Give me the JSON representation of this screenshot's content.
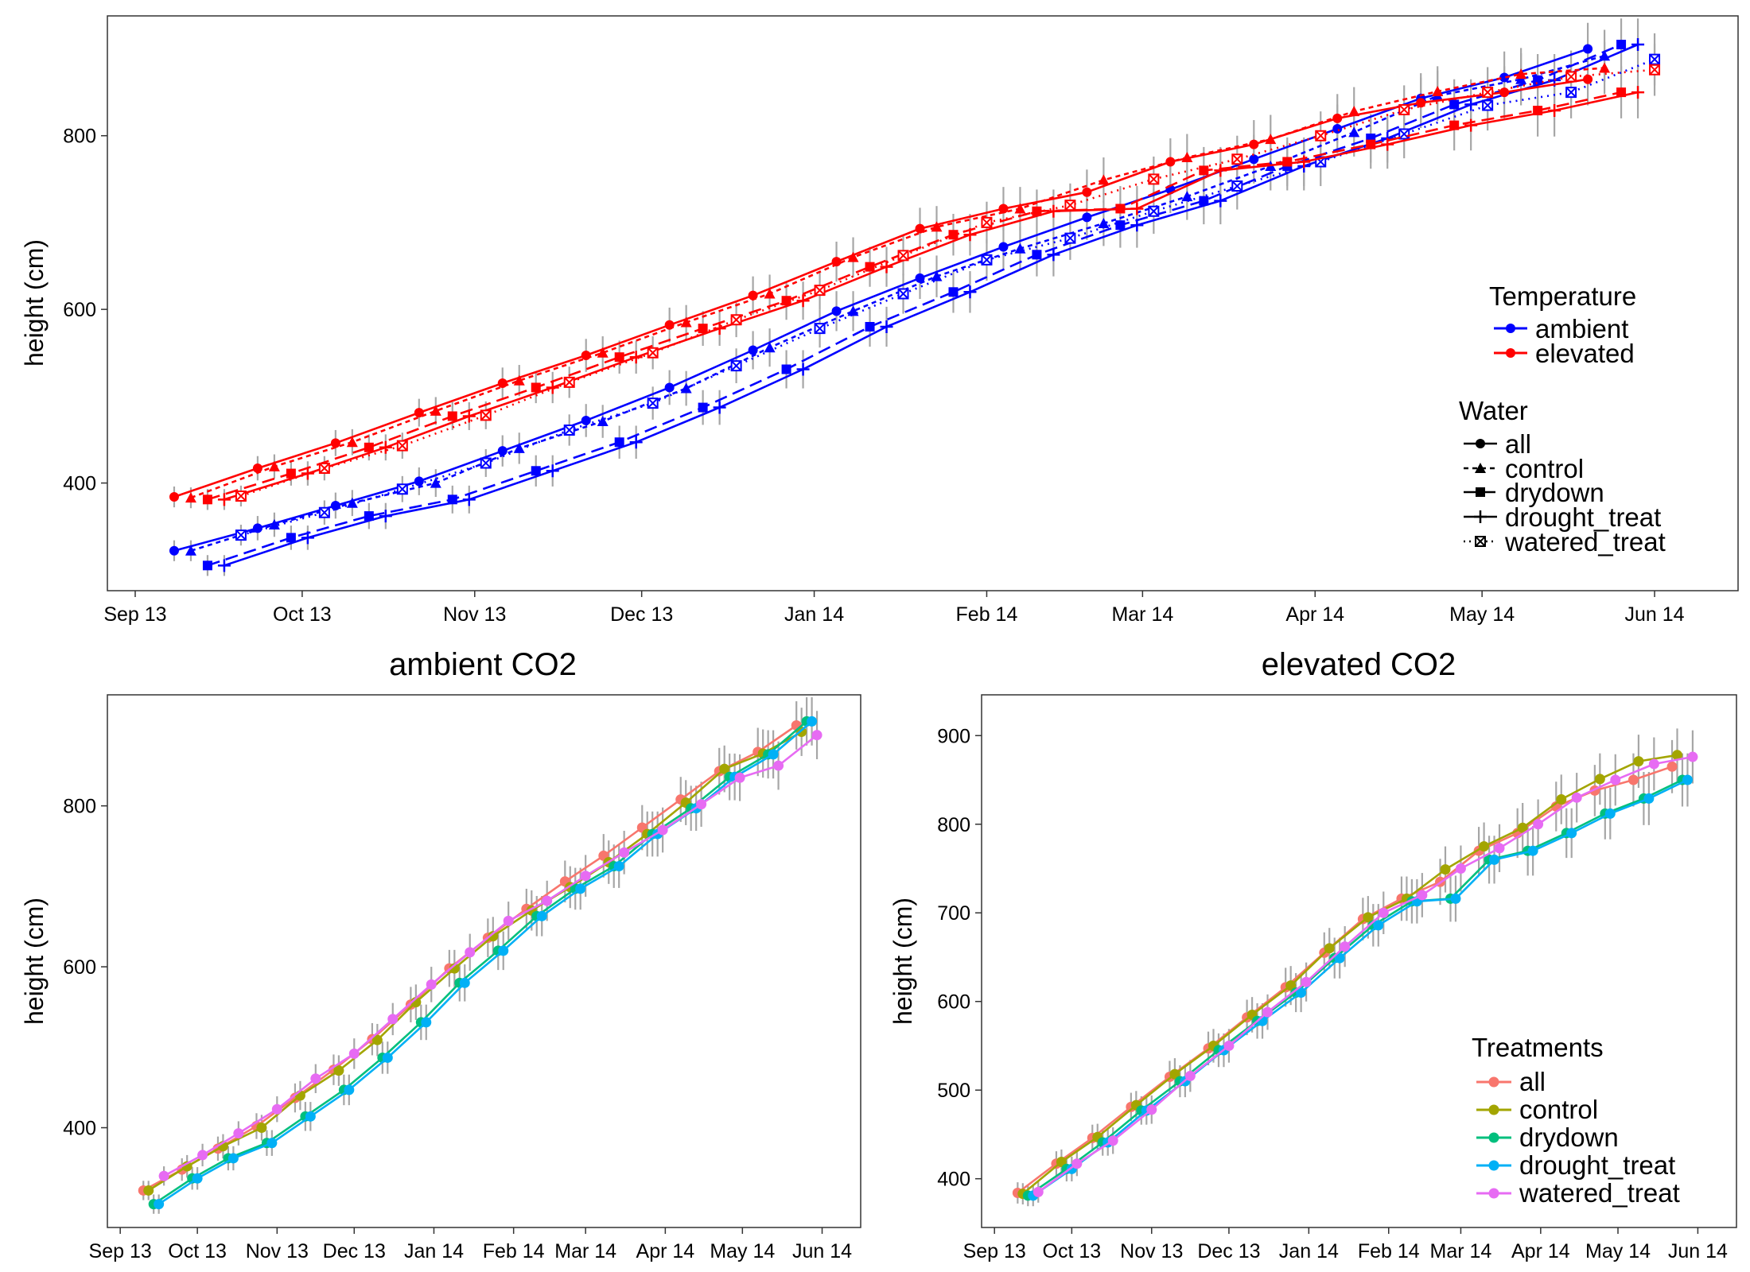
{
  "x_tick_labels": [
    "Sep 13",
    "Oct 13",
    "Nov 13",
    "Dec 13",
    "Jan 14",
    "Feb 14",
    "Mar 14",
    "Apr 14",
    "May 14",
    "Jun 14"
  ],
  "colors": {
    "ambient": "#0000ff",
    "elevated": "#ff0000",
    "errorbar": "#a6a6a6",
    "all": "#f8766d",
    "control": "#a3a500",
    "drydown": "#00bf7d",
    "drought_treat": "#00b0f6",
    "watered_treat": "#e76bf3"
  },
  "legend_top": {
    "temperature_title": "Temperature",
    "ambient": "ambient",
    "elevated": "elevated",
    "water_title": "Water",
    "all": "all",
    "control": "control",
    "drydown": "drydown",
    "drought_treat": "drought_treat",
    "watered_treat": "watered_treat"
  },
  "legend_treat": {
    "title": "Treatments",
    "all": "all",
    "control": "control",
    "drydown": "drydown",
    "drought_treat": "drought_treat",
    "watered_treat": "watered_treat"
  },
  "chart_data": [
    {
      "type": "line",
      "ylabel": "height (cm)",
      "xlabel": "",
      "x_ticks": [
        "Sep 13",
        "Oct 13",
        "Nov 13",
        "Dec 13",
        "Jan 14",
        "Feb 14",
        "Mar 14",
        "Apr 14",
        "May 14",
        "Jun 14"
      ],
      "y_ticks": [
        400,
        600,
        800
      ],
      "ylim": [
        276,
        938
      ],
      "x_axis": "date",
      "xlim": [
        "2013-08-27",
        "2014-06-16"
      ],
      "grid": false,
      "legend": [
        "Temperature: top-right",
        "Water: right"
      ],
      "x": [
        "2013-09-14",
        "2013-09-29",
        "2013-10-13",
        "2013-10-28",
        "2013-11-12",
        "2013-11-27",
        "2013-12-12",
        "2013-12-27",
        "2014-01-11",
        "2014-01-26",
        "2014-02-10",
        "2014-02-25",
        "2014-03-12",
        "2014-03-27",
        "2014-04-11",
        "2014-04-26",
        "2014-05-11",
        "2014-05-26"
      ],
      "series": [
        {
          "name": "ambient / all",
          "values": [
            322,
            348,
            374,
            402,
            437,
            472,
            510,
            553,
            598,
            636,
            672,
            706,
            738,
            773,
            808,
            843,
            867,
            900
          ],
          "error": [
            12,
            14,
            15,
            16,
            18,
            19,
            20,
            22,
            23,
            24,
            25,
            26,
            27,
            28,
            28,
            29,
            30,
            30
          ]
        },
        {
          "name": "ambient / control",
          "values": [
            322,
            352,
            377,
            400,
            440,
            471,
            509,
            556,
            598,
            638,
            670,
            699,
            730,
            765,
            804,
            846,
            865,
            892
          ],
          "error": [
            12,
            14,
            15,
            16,
            18,
            19,
            20,
            22,
            23,
            24,
            25,
            26,
            27,
            28,
            28,
            29,
            30,
            30
          ]
        },
        {
          "name": "ambient / drydown",
          "values": [
            305,
            337,
            362,
            381,
            414,
            447,
            487,
            531,
            580,
            620,
            663,
            697,
            725,
            765,
            797,
            836,
            864,
            905
          ],
          "error": [
            12,
            14,
            15,
            16,
            18,
            19,
            20,
            22,
            23,
            24,
            25,
            26,
            27,
            28,
            28,
            29,
            30,
            30
          ]
        },
        {
          "name": "ambient / drought_treat",
          "values": [
            305,
            337,
            362,
            381,
            414,
            447,
            487,
            531,
            580,
            620,
            663,
            697,
            725,
            765,
            797,
            836,
            864,
            905
          ],
          "error": [
            12,
            14,
            15,
            16,
            18,
            19,
            20,
            22,
            23,
            24,
            25,
            26,
            27,
            28,
            28,
            29,
            30,
            30
          ]
        },
        {
          "name": "ambient / watered_treat",
          "values": [
            340,
            366,
            393,
            423,
            461,
            492,
            535,
            578,
            618,
            657,
            682,
            713,
            742,
            770,
            802,
            835,
            850,
            888
          ],
          "error": [
            12,
            14,
            15,
            16,
            18,
            19,
            20,
            22,
            23,
            24,
            25,
            26,
            27,
            28,
            28,
            29,
            30,
            30
          ]
        },
        {
          "name": "elevated / all",
          "values": [
            384,
            417,
            446,
            481,
            515,
            547,
            582,
            616,
            655,
            693,
            716,
            735,
            770,
            790,
            820,
            838,
            850,
            865
          ],
          "error": [
            12,
            14,
            15,
            16,
            18,
            19,
            20,
            22,
            23,
            24,
            25,
            26,
            27,
            28,
            28,
            29,
            30,
            30
          ]
        },
        {
          "name": "elevated / control",
          "values": [
            383,
            419,
            447,
            483,
            518,
            550,
            585,
            618,
            660,
            695,
            716,
            749,
            775,
            796,
            828,
            851,
            871,
            878
          ],
          "error": [
            12,
            14,
            15,
            16,
            18,
            19,
            20,
            22,
            23,
            24,
            25,
            26,
            27,
            28,
            28,
            29,
            30,
            30
          ]
        },
        {
          "name": "elevated / drydown",
          "values": [
            381,
            411,
            441,
            477,
            510,
            545,
            578,
            610,
            649,
            686,
            713,
            716,
            760,
            770,
            790,
            812,
            829,
            850
          ],
          "error": [
            12,
            14,
            15,
            16,
            18,
            19,
            20,
            22,
            23,
            24,
            25,
            26,
            27,
            28,
            28,
            29,
            30,
            30
          ]
        },
        {
          "name": "elevated / drought_treat",
          "values": [
            381,
            411,
            441,
            477,
            510,
            545,
            578,
            610,
            649,
            686,
            713,
            716,
            760,
            770,
            790,
            812,
            829,
            850
          ],
          "error": [
            12,
            14,
            15,
            16,
            18,
            19,
            20,
            22,
            23,
            24,
            25,
            26,
            27,
            28,
            28,
            29,
            30,
            30
          ]
        },
        {
          "name": "elevated / watered_treat",
          "values": [
            385,
            417,
            443,
            478,
            516,
            550,
            588,
            622,
            662,
            700,
            720,
            750,
            773,
            800,
            830,
            850,
            868,
            876
          ],
          "error": [
            12,
            14,
            15,
            16,
            18,
            19,
            20,
            22,
            23,
            24,
            25,
            26,
            27,
            28,
            28,
            29,
            30,
            30
          ]
        }
      ]
    },
    {
      "type": "line",
      "title": "ambient CO2",
      "ylabel": "height (cm)",
      "xlabel": "",
      "x_ticks": [
        "Sep 13",
        "Oct 13",
        "Nov 13",
        "Dec 13",
        "Jan 14",
        "Feb 14",
        "Mar 14",
        "Apr 14",
        "May 14",
        "Jun 14"
      ],
      "y_ticks": [
        400,
        600,
        800
      ],
      "ylim": [
        276,
        938
      ],
      "x_axis": "date",
      "xlim": [
        "2013-08-27",
        "2014-06-16"
      ],
      "grid": false,
      "x": [
        "2013-09-14",
        "2013-09-29",
        "2013-10-13",
        "2013-10-28",
        "2013-11-12",
        "2013-11-27",
        "2013-12-12",
        "2013-12-27",
        "2014-01-11",
        "2014-01-26",
        "2014-02-10",
        "2014-02-25",
        "2014-03-12",
        "2014-03-27",
        "2014-04-11",
        "2014-04-26",
        "2014-05-11",
        "2014-05-26"
      ],
      "series": [
        {
          "name": "all",
          "values": [
            322,
            348,
            374,
            402,
            437,
            472,
            510,
            553,
            598,
            636,
            672,
            706,
            738,
            773,
            808,
            843,
            867,
            900
          ],
          "error": [
            12,
            14,
            15,
            16,
            18,
            19,
            20,
            22,
            23,
            24,
            25,
            26,
            27,
            28,
            28,
            29,
            30,
            30
          ]
        },
        {
          "name": "control",
          "values": [
            322,
            352,
            377,
            400,
            440,
            471,
            509,
            556,
            598,
            638,
            670,
            699,
            730,
            765,
            804,
            846,
            865,
            892
          ],
          "error": [
            12,
            14,
            15,
            16,
            18,
            19,
            20,
            22,
            23,
            24,
            25,
            26,
            27,
            28,
            28,
            29,
            30,
            30
          ]
        },
        {
          "name": "drydown",
          "values": [
            305,
            337,
            362,
            381,
            414,
            447,
            487,
            531,
            580,
            620,
            663,
            697,
            725,
            765,
            797,
            836,
            864,
            905
          ],
          "error": [
            12,
            14,
            15,
            16,
            18,
            19,
            20,
            22,
            23,
            24,
            25,
            26,
            27,
            28,
            28,
            29,
            30,
            30
          ]
        },
        {
          "name": "drought_treat",
          "values": [
            305,
            337,
            362,
            381,
            414,
            447,
            487,
            531,
            580,
            620,
            663,
            697,
            725,
            765,
            797,
            836,
            864,
            905
          ],
          "error": [
            12,
            14,
            15,
            16,
            18,
            19,
            20,
            22,
            23,
            24,
            25,
            26,
            27,
            28,
            28,
            29,
            30,
            30
          ]
        },
        {
          "name": "watered_treat",
          "values": [
            340,
            366,
            393,
            423,
            461,
            492,
            535,
            578,
            618,
            657,
            682,
            713,
            742,
            770,
            802,
            835,
            850,
            888
          ],
          "error": [
            12,
            14,
            15,
            16,
            18,
            19,
            20,
            22,
            23,
            24,
            25,
            26,
            27,
            28,
            28,
            29,
            30,
            30
          ]
        }
      ]
    },
    {
      "type": "line",
      "title": "elevated CO2",
      "ylabel": "height (cm)",
      "xlabel": "",
      "x_ticks": [
        "Sep 13",
        "Oct 13",
        "Nov 13",
        "Dec 13",
        "Jan 14",
        "Feb 14",
        "Mar 14",
        "Apr 14",
        "May 14",
        "Jun 14"
      ],
      "y_ticks": [
        400,
        500,
        600,
        700,
        800,
        900
      ],
      "ylim": [
        345,
        946
      ],
      "x_axis": "date",
      "xlim": [
        "2013-08-27",
        "2014-06-16"
      ],
      "grid": false,
      "legend": "bottom-right",
      "x": [
        "2013-09-14",
        "2013-09-29",
        "2013-10-13",
        "2013-10-28",
        "2013-11-12",
        "2013-11-27",
        "2013-12-12",
        "2013-12-27",
        "2014-01-11",
        "2014-01-26",
        "2014-02-10",
        "2014-02-25",
        "2014-03-12",
        "2014-03-27",
        "2014-04-11",
        "2014-04-26",
        "2014-05-11",
        "2014-05-26"
      ],
      "series": [
        {
          "name": "all",
          "values": [
            384,
            417,
            446,
            481,
            515,
            547,
            582,
            616,
            655,
            693,
            716,
            735,
            770,
            790,
            820,
            838,
            850,
            865
          ],
          "error": [
            12,
            14,
            15,
            16,
            18,
            19,
            20,
            22,
            23,
            24,
            25,
            26,
            27,
            28,
            28,
            29,
            30,
            30
          ]
        },
        {
          "name": "control",
          "values": [
            383,
            419,
            447,
            483,
            518,
            550,
            585,
            618,
            660,
            695,
            716,
            749,
            775,
            796,
            828,
            851,
            871,
            878
          ],
          "error": [
            12,
            14,
            15,
            16,
            18,
            19,
            20,
            22,
            23,
            24,
            25,
            26,
            27,
            28,
            28,
            29,
            30,
            30
          ]
        },
        {
          "name": "drydown",
          "values": [
            381,
            411,
            441,
            477,
            510,
            545,
            578,
            610,
            649,
            686,
            713,
            716,
            760,
            770,
            790,
            812,
            829,
            850
          ],
          "error": [
            12,
            14,
            15,
            16,
            18,
            19,
            20,
            22,
            23,
            24,
            25,
            26,
            27,
            28,
            28,
            29,
            30,
            30
          ]
        },
        {
          "name": "drought_treat",
          "values": [
            381,
            411,
            441,
            477,
            510,
            545,
            578,
            610,
            649,
            686,
            713,
            716,
            760,
            770,
            790,
            812,
            829,
            850
          ],
          "error": [
            12,
            14,
            15,
            16,
            18,
            19,
            20,
            22,
            23,
            24,
            25,
            26,
            27,
            28,
            28,
            29,
            30,
            30
          ]
        },
        {
          "name": "watered_treat",
          "values": [
            385,
            417,
            443,
            478,
            516,
            550,
            588,
            622,
            662,
            700,
            720,
            750,
            773,
            800,
            830,
            850,
            868,
            876
          ],
          "error": [
            12,
            14,
            15,
            16,
            18,
            19,
            20,
            22,
            23,
            24,
            25,
            26,
            27,
            28,
            28,
            29,
            30,
            30
          ]
        }
      ]
    }
  ]
}
